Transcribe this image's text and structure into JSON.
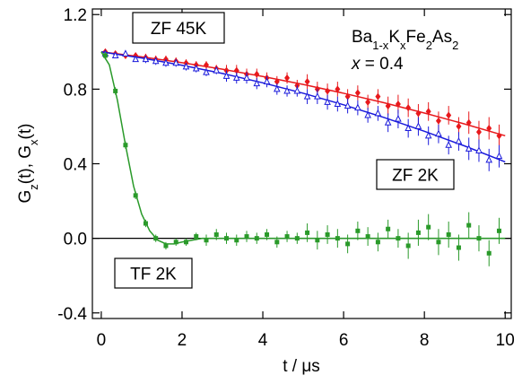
{
  "chart_data": {
    "type": "scatter",
    "x_label": "t / μs",
    "y_label": [
      "G",
      "z",
      "(t), G",
      "x",
      "(t)"
    ],
    "annotation_formula": [
      "Ba",
      "1-x",
      "K",
      "x",
      "Fe",
      "2",
      "As",
      "2"
    ],
    "annotation_x": [
      "x",
      " = 0.4"
    ],
    "xlim": [
      -0.22,
      10.15
    ],
    "ylim": [
      -0.43,
      1.23
    ],
    "xticks": [
      0,
      2,
      4,
      6,
      8,
      10
    ],
    "yticks": [
      -0.4,
      {
        "value": 0,
        "label": "0.0"
      },
      0.4,
      0.8,
      1.2
    ],
    "zero_line": true,
    "x": [
      0.1,
      0.35,
      0.6,
      0.85,
      1.1,
      1.35,
      1.6,
      1.85,
      2.1,
      2.35,
      2.6,
      2.85,
      3.1,
      3.35,
      3.6,
      3.85,
      4.1,
      4.35,
      4.6,
      4.85,
      5.1,
      5.35,
      5.6,
      5.85,
      6.1,
      6.35,
      6.6,
      6.85,
      7.1,
      7.35,
      7.6,
      7.85,
      8.1,
      8.35,
      8.6,
      8.85,
      9.1,
      9.35,
      9.6,
      9.85
    ],
    "series": [
      {
        "name": "ZF 45K",
        "color": "#e8191c",
        "marker": "diamond",
        "values": [
          1.0,
          0.99,
          0.98,
          0.98,
          0.97,
          0.96,
          0.96,
          0.95,
          0.94,
          0.93,
          0.93,
          0.91,
          0.9,
          0.9,
          0.88,
          0.88,
          0.86,
          0.84,
          0.86,
          0.82,
          0.84,
          0.8,
          0.79,
          0.8,
          0.76,
          0.78,
          0.73,
          0.76,
          0.71,
          0.72,
          0.7,
          0.67,
          0.68,
          0.63,
          0.66,
          0.6,
          0.62,
          0.57,
          0.59,
          0.55
        ],
        "errors": [
          0.01,
          0.01,
          0.01,
          0.01,
          0.02,
          0.02,
          0.02,
          0.02,
          0.02,
          0.02,
          0.02,
          0.02,
          0.03,
          0.03,
          0.03,
          0.03,
          0.03,
          0.03,
          0.03,
          0.03,
          0.04,
          0.04,
          0.04,
          0.04,
          0.04,
          0.04,
          0.04,
          0.04,
          0.05,
          0.05,
          0.05,
          0.05,
          0.05,
          0.05,
          0.05,
          0.05,
          0.06,
          0.06,
          0.06,
          0.06
        ],
        "fit_x": [
          0,
          1,
          2,
          3,
          4,
          5,
          6,
          7,
          8,
          9,
          10
        ],
        "fit_values": [
          1.0,
          0.973,
          0.942,
          0.907,
          0.868,
          0.825,
          0.778,
          0.727,
          0.672,
          0.613,
          0.55
        ]
      },
      {
        "name": "ZF 2K",
        "color": "#1a1adb",
        "marker": "triangle-open",
        "values": [
          0.99,
          0.98,
          0.99,
          0.96,
          0.96,
          0.95,
          0.94,
          0.94,
          0.92,
          0.91,
          0.89,
          0.9,
          0.87,
          0.86,
          0.86,
          0.83,
          0.84,
          0.8,
          0.79,
          0.79,
          0.76,
          0.76,
          0.73,
          0.72,
          0.71,
          0.7,
          0.66,
          0.67,
          0.62,
          0.64,
          0.59,
          0.6,
          0.55,
          0.56,
          0.5,
          0.52,
          0.48,
          0.47,
          0.42,
          0.44
        ],
        "errors": [
          0.01,
          0.01,
          0.01,
          0.01,
          0.02,
          0.02,
          0.02,
          0.02,
          0.02,
          0.02,
          0.02,
          0.02,
          0.03,
          0.03,
          0.03,
          0.03,
          0.03,
          0.03,
          0.03,
          0.03,
          0.04,
          0.04,
          0.04,
          0.04,
          0.04,
          0.04,
          0.04,
          0.04,
          0.05,
          0.05,
          0.05,
          0.05,
          0.05,
          0.05,
          0.05,
          0.05,
          0.06,
          0.06,
          0.06,
          0.06
        ],
        "fit_x": [
          0,
          1,
          2,
          3,
          4,
          5,
          6,
          7,
          8,
          9,
          10
        ],
        "fit_values": [
          1.0,
          0.967,
          0.928,
          0.884,
          0.834,
          0.778,
          0.716,
          0.648,
          0.574,
          0.495,
          0.41
        ]
      },
      {
        "name": "TF 2K",
        "color": "#2a9a2a",
        "marker": "square",
        "values": [
          0.98,
          0.79,
          0.5,
          0.23,
          0.08,
          0.0,
          -0.04,
          -0.02,
          -0.02,
          0.01,
          -0.01,
          0.02,
          0.0,
          -0.01,
          0.01,
          0.0,
          0.02,
          -0.02,
          0.01,
          0.0,
          0.03,
          -0.01,
          0.02,
          0.0,
          -0.03,
          0.04,
          0.01,
          -0.02,
          0.05,
          0.0,
          -0.04,
          0.03,
          0.06,
          -0.02,
          0.02,
          -0.05,
          0.07,
          0.0,
          -0.08,
          0.04
        ],
        "errors": [
          0.02,
          0.02,
          0.02,
          0.02,
          0.02,
          0.02,
          0.02,
          0.02,
          0.02,
          0.02,
          0.03,
          0.03,
          0.03,
          0.03,
          0.03,
          0.03,
          0.03,
          0.03,
          0.03,
          0.03,
          0.05,
          0.05,
          0.05,
          0.05,
          0.05,
          0.05,
          0.05,
          0.05,
          0.05,
          0.05,
          0.07,
          0.07,
          0.07,
          0.07,
          0.07,
          0.07,
          0.07,
          0.07,
          0.07,
          0.07
        ],
        "fit_x": [
          0,
          0.2,
          0.4,
          0.6,
          0.8,
          1.0,
          1.2,
          1.4,
          1.6,
          1.8,
          2.0,
          2.5,
          3,
          10
        ],
        "fit_values": [
          1.0,
          0.93,
          0.74,
          0.5,
          0.28,
          0.13,
          0.04,
          -0.01,
          -0.03,
          -0.03,
          -0.02,
          0.0,
          0.0,
          0.0
        ]
      }
    ]
  }
}
